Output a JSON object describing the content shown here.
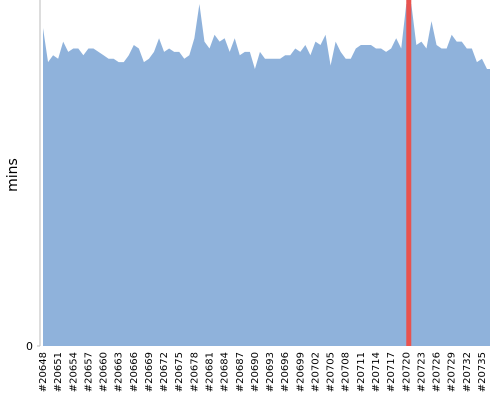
{
  "chart_data": {
    "type": "area",
    "y_label": "mins",
    "categories": [
      "#20648",
      null,
      null,
      "#20651",
      null,
      null,
      "#20654",
      null,
      null,
      "#20657",
      null,
      null,
      "#20660",
      null,
      null,
      "#20663",
      null,
      null,
      "#20666",
      null,
      null,
      "#20669",
      null,
      null,
      "#20672",
      null,
      null,
      "#20675",
      null,
      null,
      "#20678",
      null,
      null,
      "#20681",
      null,
      null,
      "#20684",
      null,
      null,
      "#20687",
      null,
      null,
      "#20690",
      null,
      null,
      "#20693",
      null,
      null,
      "#20696",
      null,
      null,
      "#20699",
      null,
      null,
      "#20702",
      null,
      null,
      "#20705",
      null,
      null,
      "#20708",
      null,
      null,
      "#20711",
      null,
      null,
      "#20714",
      null,
      null,
      "#20717",
      null,
      null,
      "#20720",
      null,
      null,
      "#20723",
      null,
      null,
      "#20726",
      null,
      null,
      "#20729",
      null,
      null,
      "#20732",
      null,
      null,
      "#20735",
      null
    ],
    "values": [
      93,
      83,
      85,
      84,
      89,
      86,
      87,
      87,
      85,
      87,
      87,
      86,
      85,
      84,
      84,
      83,
      83,
      85,
      88,
      87,
      83,
      84,
      86,
      90,
      86,
      87,
      86,
      86,
      84,
      85,
      90,
      100,
      89,
      87,
      91,
      89,
      90,
      86,
      90,
      85,
      86,
      86,
      81,
      86,
      84,
      84,
      84,
      84,
      85,
      85,
      87,
      86,
      88,
      85,
      89,
      88,
      91,
      82,
      89,
      86,
      84,
      84,
      87,
      88,
      88,
      88,
      87,
      87,
      86,
      87,
      90,
      87,
      100,
      100,
      88,
      89,
      87,
      95,
      88,
      87,
      87,
      91,
      89,
      89,
      87,
      87,
      83,
      84,
      81
    ],
    "color": "#8fb2db",
    "highlight": {
      "index": 72,
      "color": "#e8534f"
    },
    "ylim": [
      0,
      100
    ],
    "yticks": [
      0
    ]
  }
}
